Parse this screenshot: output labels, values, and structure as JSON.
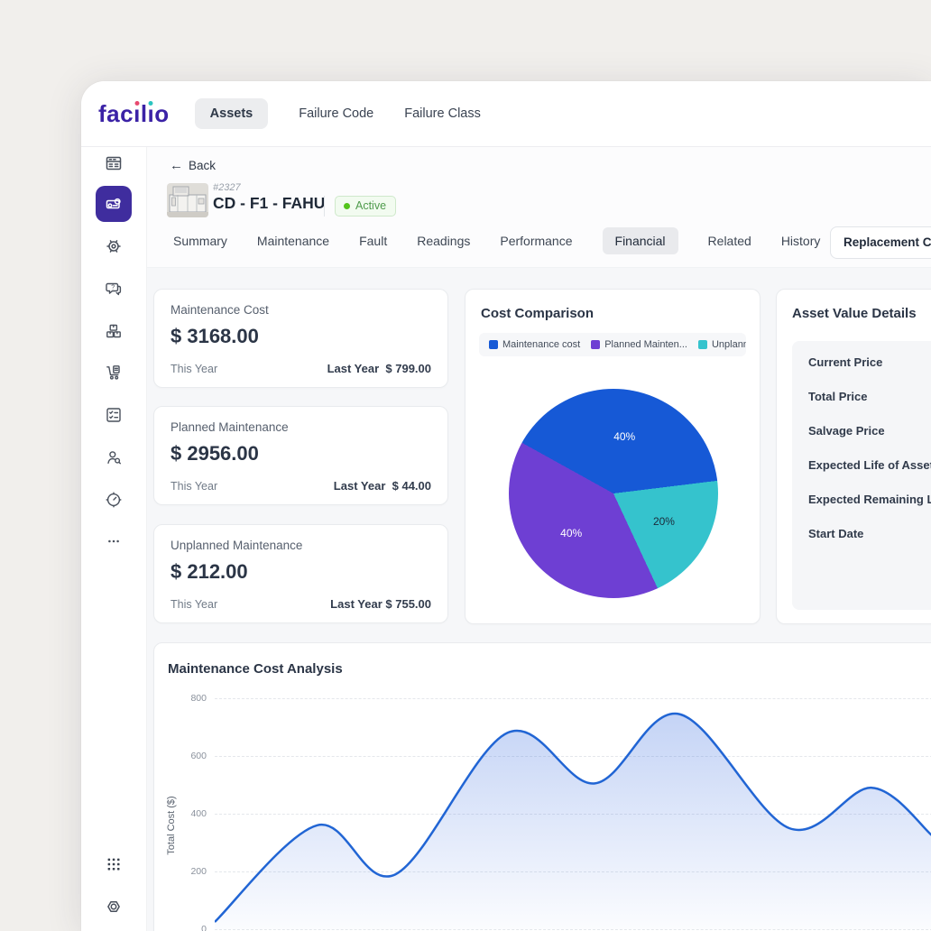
{
  "brand": {
    "name": "facilio",
    "color": "#3b22a6",
    "i_dot_colors": [
      "#e84a6f",
      "#2cc5c0"
    ]
  },
  "topnav": {
    "items": [
      {
        "label": "Assets",
        "active": true
      },
      {
        "label": "Failure Code",
        "active": false
      },
      {
        "label": "Failure Class",
        "active": false
      }
    ]
  },
  "sidebar": {
    "active_index": 1,
    "items": [
      "dashboard",
      "assets",
      "maintenance",
      "fault-report",
      "inventory",
      "procurement",
      "checklist",
      "visitor",
      "automation",
      "more"
    ],
    "bottom_items": [
      "app-grid",
      "settings"
    ]
  },
  "header": {
    "back_label": "Back",
    "back_arrow": "←",
    "asset_id": "#2327",
    "asset_name": "CD - F1 - FAHU",
    "status": {
      "label": "Active",
      "dot_color": "#52c41a"
    }
  },
  "tabs": {
    "items": [
      "Summary",
      "Maintenance",
      "Fault",
      "Readings",
      "Performance",
      "Financial",
      "Related",
      "History"
    ],
    "active": "Financial",
    "action_button": "Replacement Cost"
  },
  "stat_cards": [
    {
      "title": "Maintenance Cost",
      "value": "$ 3168.00",
      "period": "This Year",
      "compare_label": "Last Year",
      "compare_value": "$ 799.00"
    },
    {
      "title": "Planned Maintenance",
      "value": "$ 2956.00",
      "period": "This Year",
      "compare_label": "Last Year",
      "compare_value": "$ 44.00"
    },
    {
      "title": "Unplanned Maintenance",
      "value": "$ 212.00",
      "period": "This Year",
      "compare_label": "Last Year",
      "compare_value": "$ 755.00"
    }
  ],
  "asset_value_details": {
    "title": "Asset Value Details",
    "rows": [
      "Current Price",
      "Total Price",
      "Salvage Price",
      "Expected Life of Asset",
      "Expected Remaining Life",
      "Start Date"
    ]
  },
  "chart_data": [
    {
      "type": "pie",
      "title": "Cost Comparison",
      "legend_display": [
        "Maintenance cost",
        "Planned Mainten...",
        "Unplanned"
      ],
      "legend_colors": [
        "#1659d6",
        "#6e3fd3",
        "#35c3cd"
      ],
      "series": [
        {
          "name": "Maintenance cost",
          "value": 40,
          "pct_label": "40%",
          "color": "#1659d6",
          "label_color": "#ffffff"
        },
        {
          "name": "Unplanned Maintenance",
          "value": 20,
          "pct_label": "20%",
          "color": "#35c3cd",
          "label_color": "#1b2a3a"
        },
        {
          "name": "Planned Maintenance",
          "value": 40,
          "pct_label": "40%",
          "color": "#6e3fd3",
          "label_color": "#ffffff"
        }
      ],
      "start_angle_from_top_deg": -61,
      "direction": "clockwise",
      "legend_position": "top"
    },
    {
      "type": "area",
      "title": "Maintenance Cost Analysis",
      "ylabel": "Total Cost ($)",
      "ylim": [
        0,
        800
      ],
      "yticks": [
        800,
        600,
        400,
        200,
        0
      ],
      "x_axis_labels_visible": false,
      "grid": "horizontal dashed",
      "line_color": "#2165d4",
      "fill_color": "#3b6ee0",
      "points": [
        {
          "x_frac": 0.0,
          "y": 25
        },
        {
          "x_frac": 0.143,
          "y": 360
        },
        {
          "x_frac": 0.252,
          "y": 190
        },
        {
          "x_frac": 0.408,
          "y": 680
        },
        {
          "x_frac": 0.53,
          "y": 505
        },
        {
          "x_frac": 0.648,
          "y": 745
        },
        {
          "x_frac": 0.801,
          "y": 350
        },
        {
          "x_frac": 0.916,
          "y": 490
        },
        {
          "x_frac": 1.0,
          "y": 325
        }
      ]
    }
  ]
}
